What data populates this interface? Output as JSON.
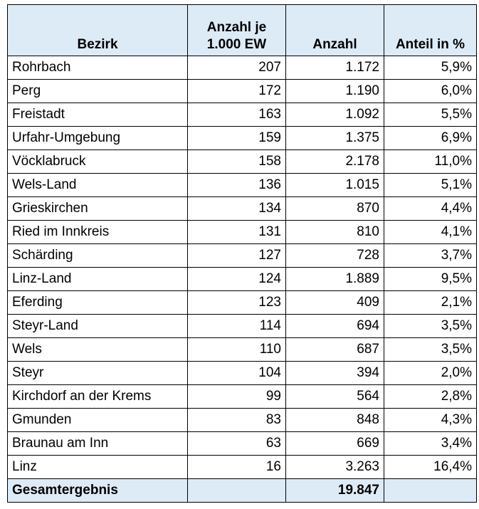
{
  "table": {
    "headers": {
      "bezirk": "Bezirk",
      "rate_line1": "Anzahl je",
      "rate_line2": "1.000 EW",
      "count": "Anzahl",
      "share": "Anteil in %"
    },
    "rows": [
      {
        "bezirk": "Rohrbach",
        "rate": "207",
        "count": "1.172",
        "share": "5,9%"
      },
      {
        "bezirk": "Perg",
        "rate": "172",
        "count": "1.190",
        "share": "6,0%"
      },
      {
        "bezirk": "Freistadt",
        "rate": "163",
        "count": "1.092",
        "share": "5,5%"
      },
      {
        "bezirk": "Urfahr-Umgebung",
        "rate": "159",
        "count": "1.375",
        "share": "6,9%"
      },
      {
        "bezirk": "Vöcklabruck",
        "rate": "158",
        "count": "2.178",
        "share": "11,0%"
      },
      {
        "bezirk": "Wels-Land",
        "rate": "136",
        "count": "1.015",
        "share": "5,1%"
      },
      {
        "bezirk": "Grieskirchen",
        "rate": "134",
        "count": "870",
        "share": "4,4%"
      },
      {
        "bezirk": "Ried im Innkreis",
        "rate": "131",
        "count": "810",
        "share": "4,1%"
      },
      {
        "bezirk": "Schärding",
        "rate": "127",
        "count": "728",
        "share": "3,7%"
      },
      {
        "bezirk": "Linz-Land",
        "rate": "124",
        "count": "1.889",
        "share": "9,5%"
      },
      {
        "bezirk": "Eferding",
        "rate": "123",
        "count": "409",
        "share": "2,1%"
      },
      {
        "bezirk": "Steyr-Land",
        "rate": "114",
        "count": "694",
        "share": "3,5%"
      },
      {
        "bezirk": "Wels",
        "rate": "110",
        "count": "687",
        "share": "3,5%"
      },
      {
        "bezirk": "Steyr",
        "rate": "104",
        "count": "394",
        "share": "2,0%"
      },
      {
        "bezirk": "Kirchdorf an der Krems",
        "rate": "99",
        "count": "564",
        "share": "2,8%"
      },
      {
        "bezirk": "Gmunden",
        "rate": "83",
        "count": "848",
        "share": "4,3%"
      },
      {
        "bezirk": "Braunau am Inn",
        "rate": "63",
        "count": "669",
        "share": "3,4%"
      },
      {
        "bezirk": "Linz",
        "rate": "16",
        "count": "3.263",
        "share": "16,4%"
      }
    ],
    "total": {
      "label": "Gesamtergebnis",
      "rate": "",
      "count": "19.847",
      "share": ""
    }
  },
  "colors": {
    "header_bg": "#ddebf7",
    "border": "#000000"
  }
}
